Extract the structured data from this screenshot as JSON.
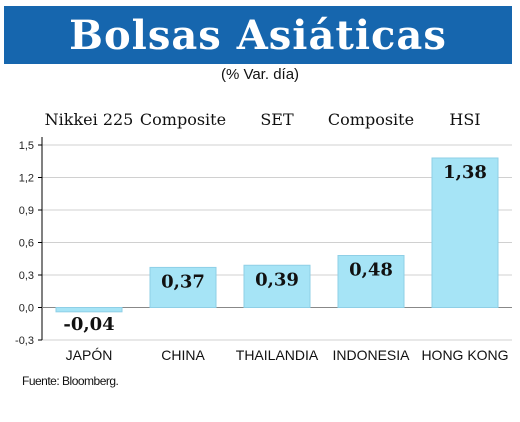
{
  "title": "Bolsas Asiáticas",
  "subtitle": "(% Var. día)",
  "footnote": "Fuente: Bloomberg.",
  "colors": {
    "banner": "#1666ae",
    "bar": "#a6e4f6",
    "bar_stroke": "#8fcfe6",
    "grid": "#d0d0d0",
    "axis": "#000000"
  },
  "chart_data": {
    "type": "bar",
    "categories": [
      "JAPÓN",
      "CHINA",
      "THAILANDIA",
      "INDONESIA",
      "HONG KONG"
    ],
    "index_names": [
      "Nikkei 225",
      "Composite",
      "SET",
      "Composite",
      "HSI"
    ],
    "values": [
      -0.04,
      0.37,
      0.39,
      0.48,
      1.38
    ],
    "value_labels": [
      "-0,04",
      "0,37",
      "0,39",
      "0,48",
      "1,38"
    ],
    "ylim": [
      -0.3,
      1.5
    ],
    "yticks": [
      -0.3,
      0.0,
      0.3,
      0.6,
      0.9,
      1.2,
      1.5
    ],
    "ytick_labels": [
      "-0,3",
      "0,0",
      "0,3",
      "0,6",
      "0,9",
      "1,2",
      "1,5"
    ],
    "grid": true,
    "legend": "none"
  }
}
